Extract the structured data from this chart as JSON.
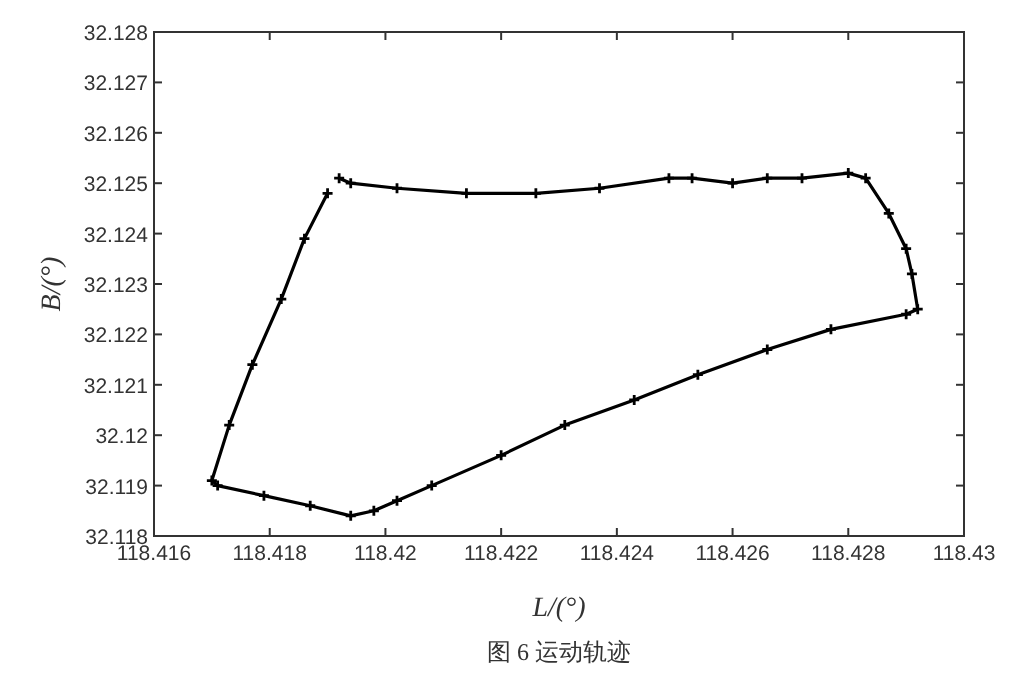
{
  "chart_data": {
    "type": "line",
    "xlabel": "L/(°)",
    "ylabel": "B/(°)",
    "annotations": [
      "图 6 运动轨迹"
    ],
    "marker": "cross",
    "line_style": "solid",
    "grid": false,
    "xlim": [
      118.416,
      118.43
    ],
    "xticks": [
      118.416,
      118.418,
      118.42,
      118.422,
      118.424,
      118.426,
      118.428,
      118.43
    ],
    "ylim": [
      32.118,
      32.128
    ],
    "yticks": [
      32.118,
      32.119,
      32.12,
      32.121,
      32.122,
      32.123,
      32.124,
      32.125,
      32.126,
      32.127,
      32.128
    ],
    "series": [
      {
        "color": "#000000",
        "x": [
          118.4192,
          118.4194,
          118.4202,
          118.4214,
          118.4226,
          118.4237,
          118.4249,
          118.4253,
          118.426,
          118.4266,
          118.4272,
          118.428,
          118.4283,
          118.4287,
          118.429,
          118.4291,
          118.4292,
          118.429,
          118.4277,
          118.4266,
          118.4254,
          118.4243,
          118.4231,
          118.422,
          118.4208,
          118.4202,
          118.4198,
          118.4194,
          118.4187,
          118.4179,
          118.4171,
          118.417,
          118.4173,
          118.4177,
          118.4182,
          118.4186,
          118.419
        ],
        "values": [
          32.1251,
          32.125,
          32.1249,
          32.1248,
          32.1248,
          32.1249,
          32.1251,
          32.1251,
          32.125,
          32.1251,
          32.1251,
          32.1252,
          32.1251,
          32.1244,
          32.1237,
          32.1232,
          32.1225,
          32.1224,
          32.1221,
          32.1217,
          32.1212,
          32.1207,
          32.1202,
          32.1196,
          32.119,
          32.1187,
          32.1185,
          32.1184,
          32.1186,
          32.1188,
          32.119,
          32.1191,
          32.1202,
          32.1214,
          32.1227,
          32.1239,
          32.1248
        ]
      }
    ]
  }
}
